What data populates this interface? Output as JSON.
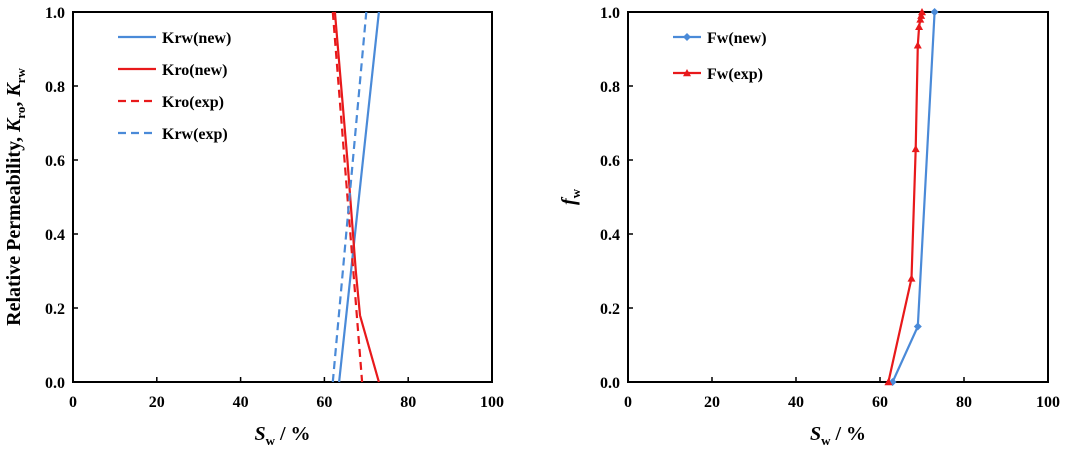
{
  "chart_data": [
    {
      "type": "line",
      "xlabel": {
        "main": "S",
        "sub": "w",
        "rest": " / %"
      },
      "ylabel": {
        "lead": "Relative Permeability, ",
        "k1": "K",
        "s1": "ro",
        "sep": ", ",
        "k2": "K",
        "s2": "rw"
      },
      "xlim": [
        0,
        100
      ],
      "ylim": [
        0,
        1
      ],
      "x_ticks": [
        "0",
        "20",
        "40",
        "60",
        "80",
        "100"
      ],
      "y_ticks": [
        "0.0",
        "0.2",
        "0.4",
        "0.6",
        "0.8",
        "1.0"
      ],
      "grid": false,
      "legend_position": "top-left",
      "series": [
        {
          "name": "Krw(new)",
          "color": "#4a8ad8",
          "dash": "solid",
          "marker": "none",
          "x": [
            63.5,
            73
          ],
          "y": [
            0.0,
            1.0
          ]
        },
        {
          "name": "Kro(new)",
          "color": "#e8191b",
          "dash": "solid",
          "marker": "none",
          "x": [
            62.5,
            65.5,
            67.5,
            68.5,
            71,
            73
          ],
          "y": [
            1.0,
            0.6,
            0.3,
            0.18,
            0.08,
            0.0
          ]
        },
        {
          "name": "Kro(exp)",
          "color": "#e8191b",
          "dash": "dashed",
          "marker": "none",
          "x": [
            62,
            69
          ],
          "y": [
            1.0,
            0.0
          ]
        },
        {
          "name": "Krw(exp)",
          "color": "#4a8ad8",
          "dash": "dashed",
          "marker": "none",
          "x": [
            62,
            70
          ],
          "y": [
            0.0,
            1.0
          ]
        }
      ]
    },
    {
      "type": "line",
      "xlabel": {
        "main": "S",
        "sub": "w",
        "rest": " / %"
      },
      "ylabel": {
        "main": "f",
        "sub": "w"
      },
      "xlim": [
        0,
        100
      ],
      "ylim": [
        0,
        1
      ],
      "x_ticks": [
        "0",
        "20",
        "40",
        "60",
        "80",
        "100"
      ],
      "y_ticks": [
        "0.0",
        "0.2",
        "0.4",
        "0.6",
        "0.8",
        "1.0"
      ],
      "grid": false,
      "legend_position": "top-left",
      "series": [
        {
          "name": "Fw(new)",
          "color": "#4a8ad8",
          "dash": "solid",
          "marker": "diamond",
          "x": [
            63,
            69,
            73
          ],
          "y": [
            0.0,
            0.15,
            1.0
          ]
        },
        {
          "name": "Fw(exp)",
          "color": "#e8191b",
          "dash": "solid",
          "marker": "triangle",
          "x": [
            62,
            67.5,
            68.5,
            69,
            69.3,
            69.6,
            69.8,
            70
          ],
          "y": [
            0.0,
            0.28,
            0.63,
            0.91,
            0.96,
            0.98,
            0.99,
            1.0
          ]
        }
      ]
    }
  ]
}
